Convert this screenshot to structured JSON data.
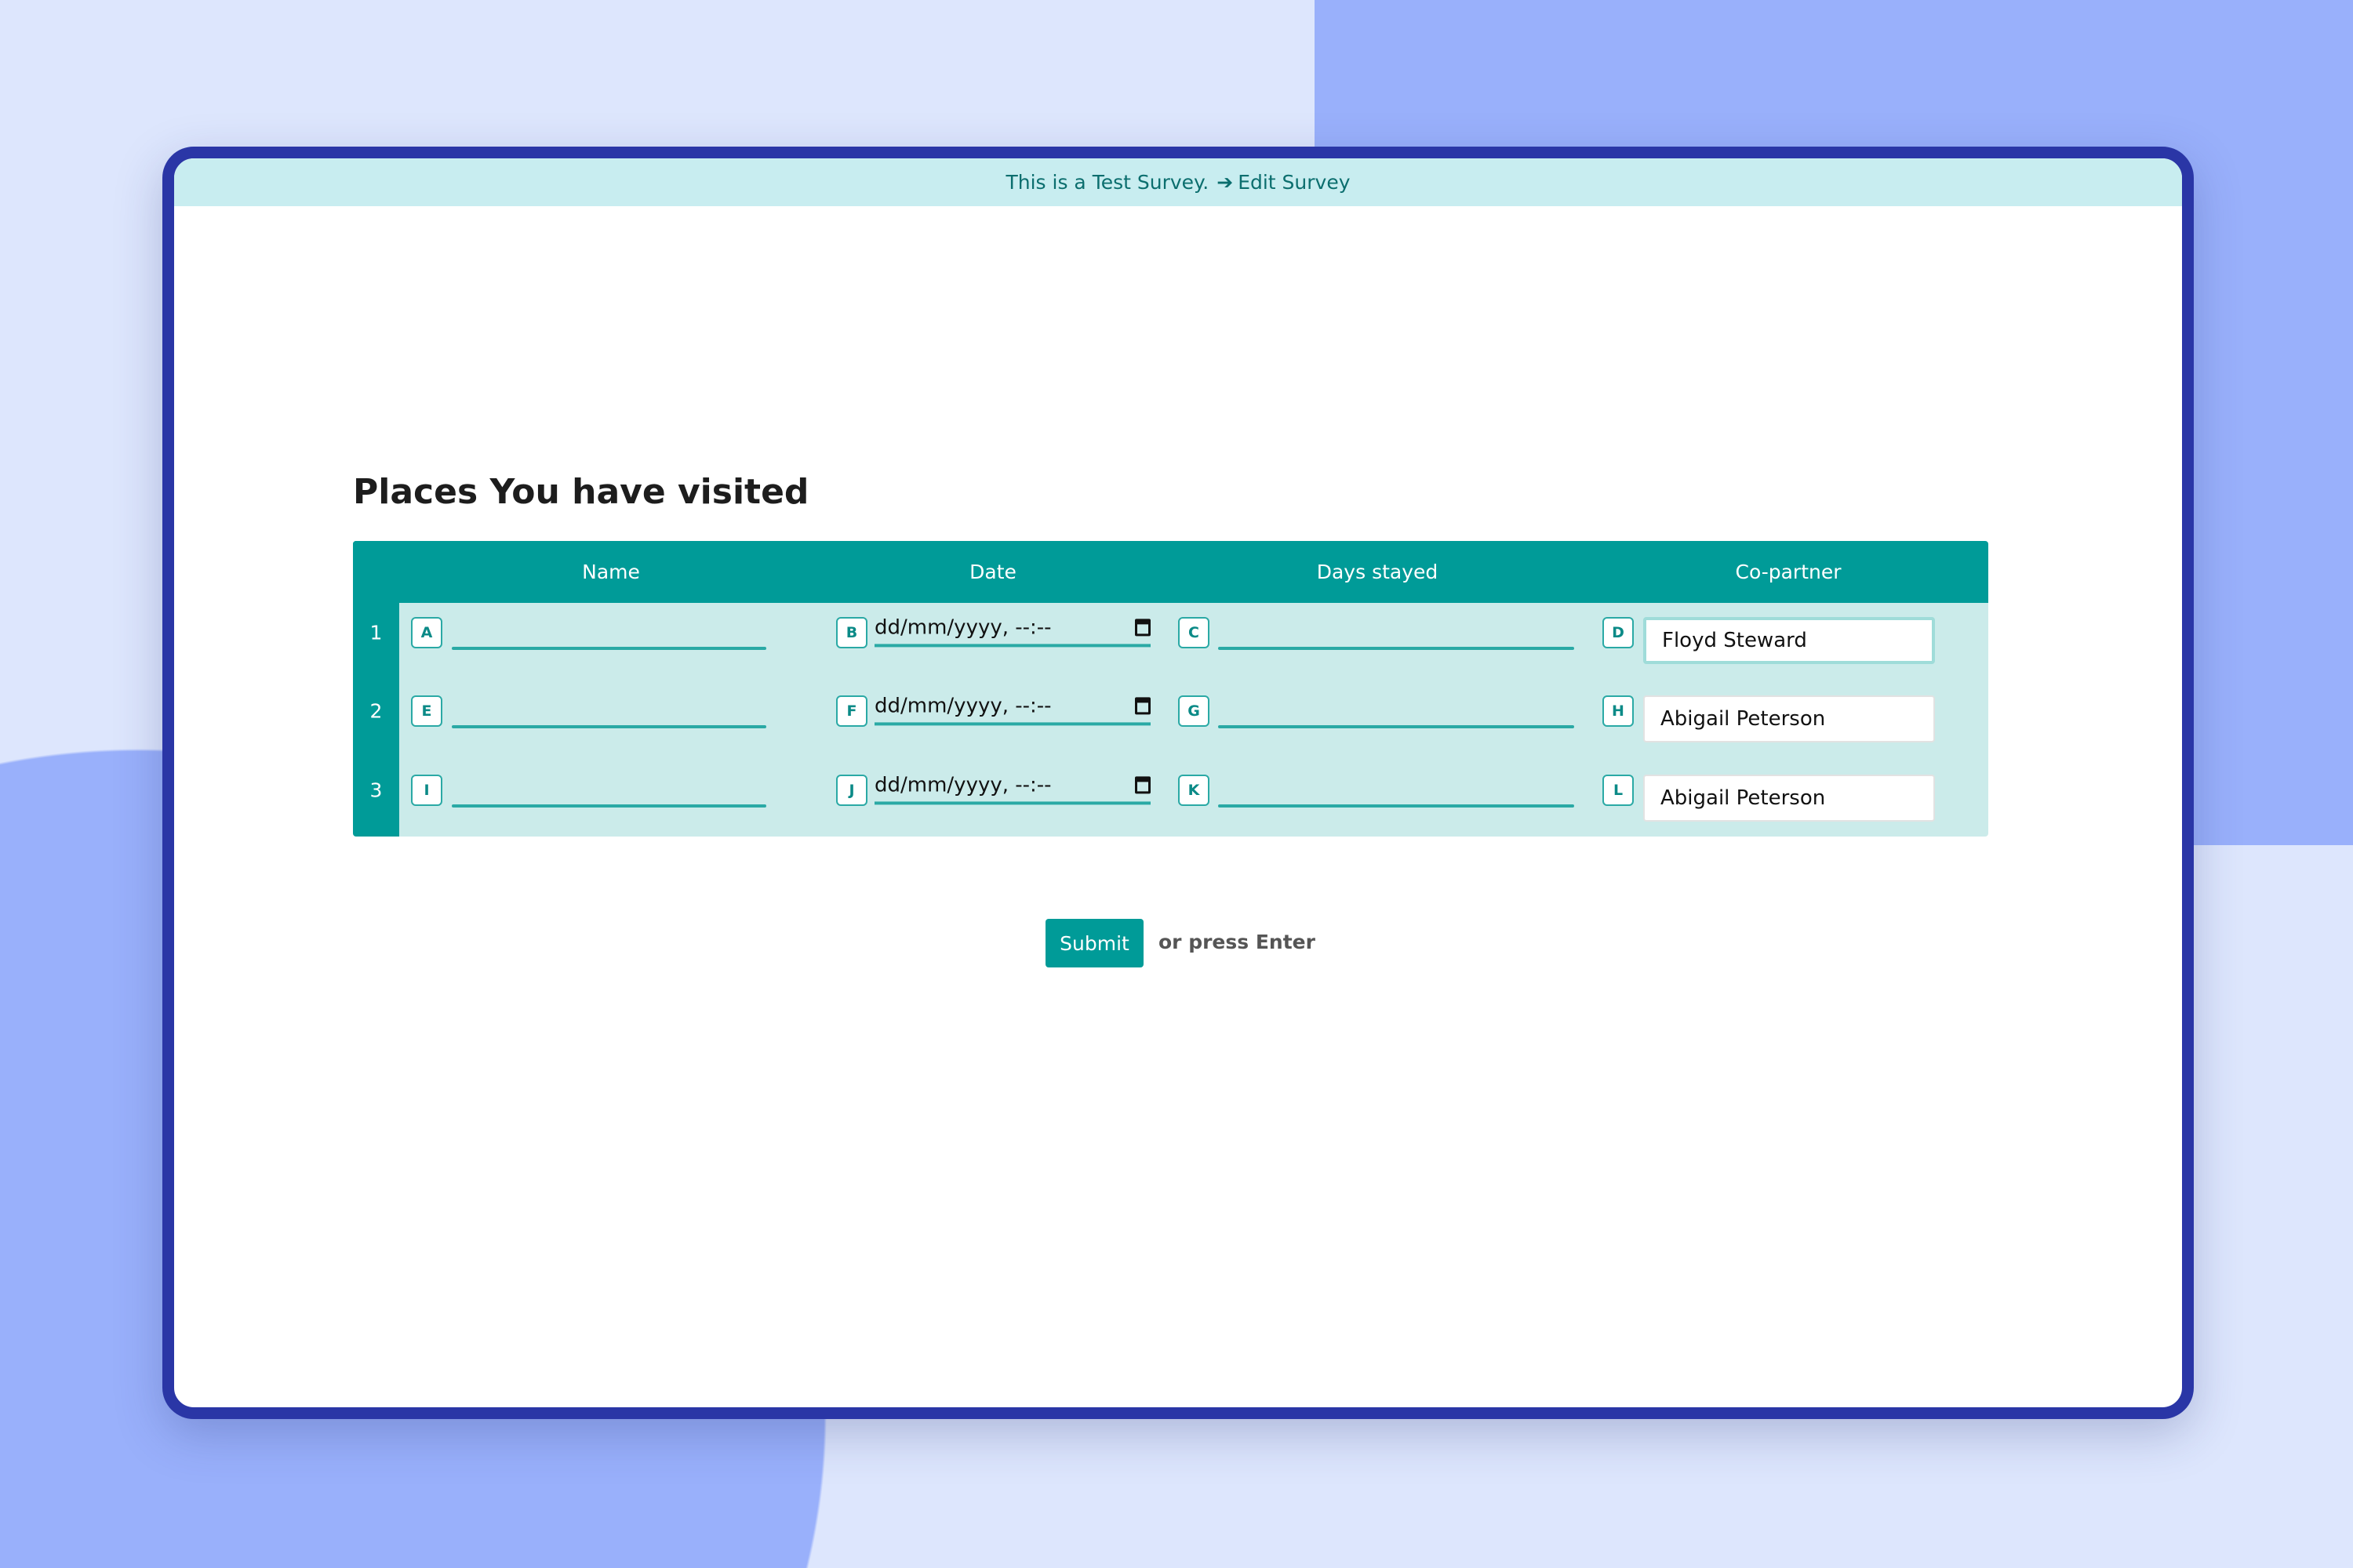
{
  "banner": {
    "text": "This is a Test Survey.",
    "edit_label": "Edit Survey",
    "edit_icon": "arrow-right-icon"
  },
  "question": {
    "title": "Places You have visited"
  },
  "table": {
    "columns": [
      "Name",
      "Date",
      "Days stayed",
      "Co-partner"
    ],
    "date_placeholder": "dd/mm/yyyy, --:--",
    "rows": [
      {
        "num": "1",
        "keys": [
          "A",
          "B",
          "C",
          "D"
        ],
        "copartner": "Floyd Steward"
      },
      {
        "num": "2",
        "keys": [
          "E",
          "F",
          "G",
          "H"
        ],
        "copartner": "Abigail Peterson"
      },
      {
        "num": "3",
        "keys": [
          "I",
          "J",
          "K",
          "L"
        ],
        "copartner": "Abigail Peterson"
      }
    ]
  },
  "submit": {
    "label": "Submit",
    "hint": "or press Enter"
  },
  "colors": {
    "accent": "#009b98",
    "frame": "#2a36a6",
    "banner": "#c8edf0",
    "table_body": "#cbebea"
  }
}
